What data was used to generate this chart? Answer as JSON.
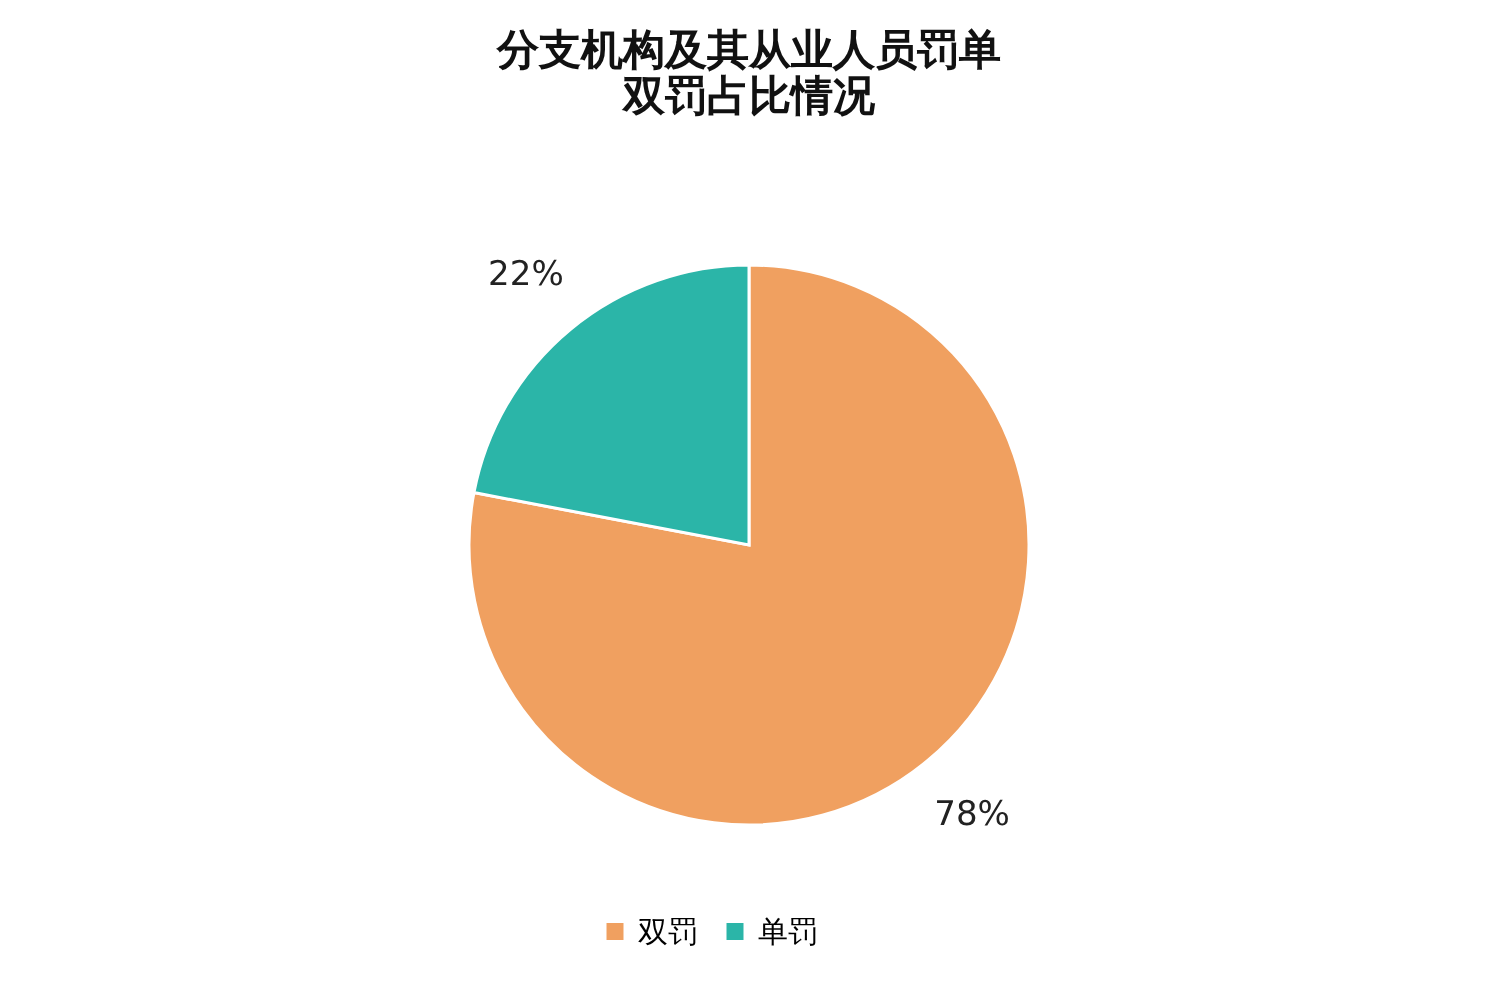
{
  "chart_data": {
    "type": "pie",
    "title": "分支机构及其从业人员罚单双罚占比情况",
    "categories": [
      "双罚",
      "单罚"
    ],
    "values": [
      78,
      22
    ],
    "colors": [
      "#f0a060",
      "#2bb5a8"
    ],
    "value_labels": [
      "78%",
      "22%"
    ],
    "legend": "bottom"
  }
}
